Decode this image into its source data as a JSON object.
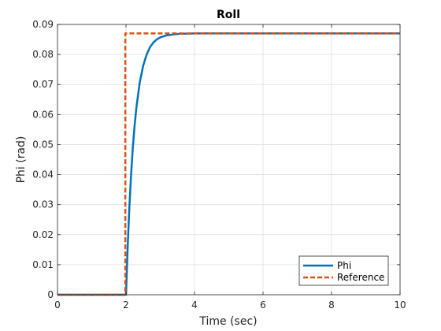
{
  "chart_data": {
    "type": "line",
    "title": "Roll",
    "xlabel": "Time (sec)",
    "ylabel": "Phi (rad)",
    "xlim": [
      0,
      10
    ],
    "ylim": [
      0,
      0.09
    ],
    "xticks": [
      0,
      2,
      4,
      6,
      8,
      10
    ],
    "xtick_labels": [
      "0",
      "2",
      "4",
      "6",
      "8",
      "10"
    ],
    "yticks": [
      0,
      0.01,
      0.02,
      0.03,
      0.04,
      0.05,
      0.06,
      0.07,
      0.08,
      0.09
    ],
    "ytick_labels": [
      "0",
      "0.01",
      "0.02",
      "0.03",
      "0.04",
      "0.05",
      "0.06",
      "0.07",
      "0.08",
      "0.09"
    ],
    "grid": true,
    "legend_position": "bottom-right",
    "series": [
      {
        "name": "Phi",
        "color": "#0072BD",
        "style": "solid",
        "x": [
          0,
          2.0,
          2.05,
          2.1,
          2.15,
          2.2,
          2.25,
          2.3,
          2.4,
          2.5,
          2.6,
          2.7,
          2.8,
          2.9,
          3.0,
          3.2,
          3.4,
          3.6,
          3.8,
          4.0,
          4.5,
          5.0,
          6.0,
          7.0,
          8.0,
          9.0,
          10.0
        ],
        "y": [
          0,
          0,
          0.0163,
          0.0295,
          0.0403,
          0.0491,
          0.0562,
          0.062,
          0.0706,
          0.0762,
          0.0799,
          0.0824,
          0.084,
          0.085,
          0.0857,
          0.0864,
          0.0867,
          0.0869,
          0.0869,
          0.087,
          0.087,
          0.087,
          0.087,
          0.087,
          0.087,
          0.087,
          0.087
        ]
      },
      {
        "name": "Reference",
        "color": "#D95319",
        "style": "dashed",
        "x": [
          0,
          1.98,
          1.98,
          2.0,
          10.0
        ],
        "y": [
          0,
          0,
          0.087,
          0.087,
          0.087
        ]
      }
    ]
  }
}
